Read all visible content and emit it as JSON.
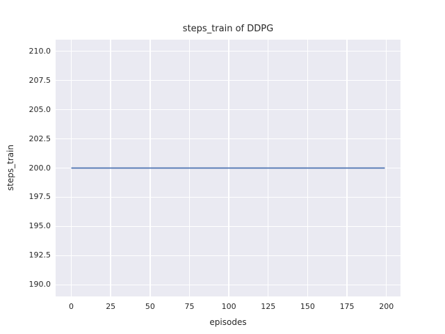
{
  "chart_data": {
    "type": "line",
    "title": "steps_train of DDPG",
    "xlabel": "episodes",
    "ylabel": "steps_train",
    "x_ticks": {
      "values": [
        0,
        25,
        50,
        75,
        100,
        125,
        150,
        175,
        200
      ],
      "labels": [
        "0",
        "25",
        "50",
        "75",
        "100",
        "125",
        "150",
        "175",
        "200"
      ]
    },
    "y_ticks": {
      "values": [
        190.0,
        192.5,
        195.0,
        197.5,
        200.0,
        202.5,
        205.0,
        207.5,
        210.0
      ],
      "labels": [
        "190.0",
        "192.5",
        "195.0",
        "197.5",
        "200.0",
        "202.5",
        "205.0",
        "207.5",
        "210.0"
      ]
    },
    "xlim": [
      -9.95,
      208.95
    ],
    "ylim": [
      189.0,
      211.0
    ],
    "grid": true,
    "legend": false,
    "series": [
      {
        "name": "steps_train",
        "x": [
          0,
          199
        ],
        "y": [
          200,
          200
        ],
        "color": "#4C72B0",
        "linewidth": 1.8
      }
    ],
    "style": {
      "figure_bg": "#FFFFFF",
      "axes_bg": "#EAEAF2",
      "grid_color": "#FFFFFF",
      "text_color": "#262626"
    }
  }
}
